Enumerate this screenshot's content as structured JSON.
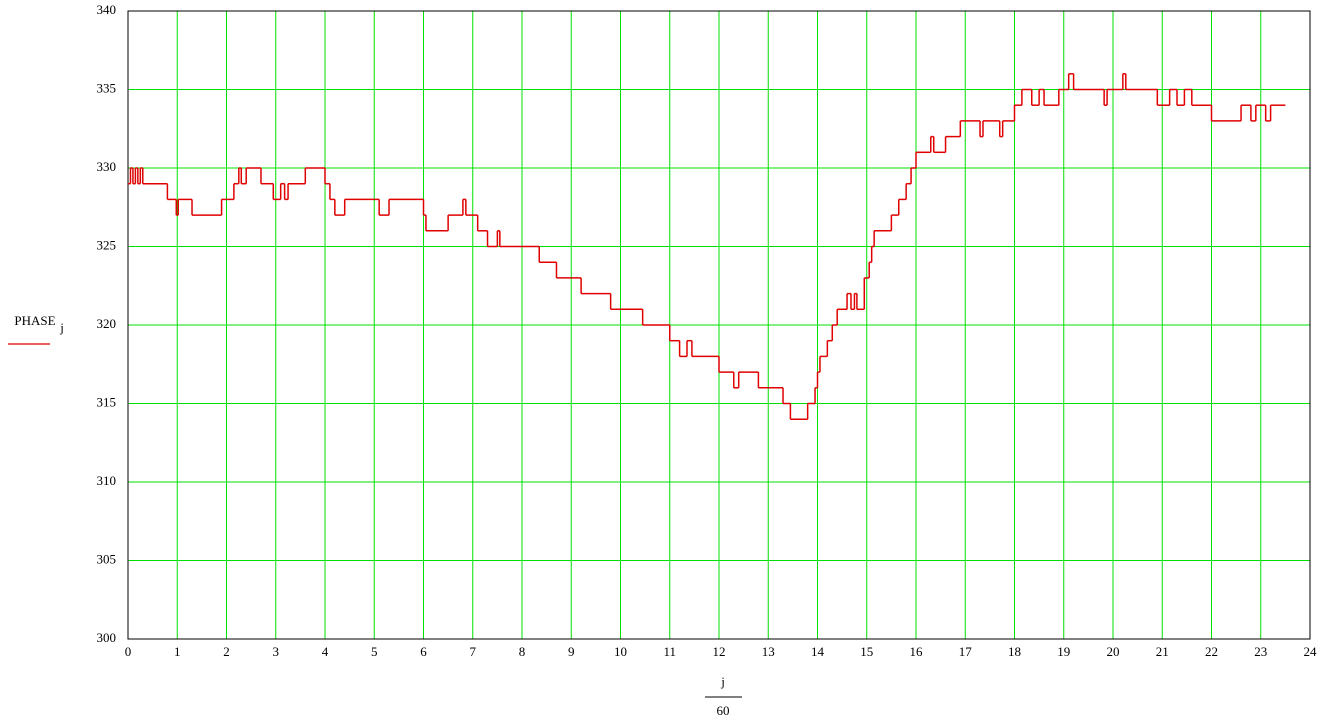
{
  "chart_data": {
    "type": "step",
    "y_label": "PHASE",
    "y_label_sub": "j",
    "x_label_num": "j",
    "x_label_den": "60",
    "series": [
      {
        "color": "#e00000",
        "x": [
          0,
          0.05,
          0.1,
          0.15,
          0.2,
          0.25,
          0.3,
          0.8,
          0.98,
          1.02,
          1.3,
          1.9,
          2.15,
          2.25,
          2.3,
          2.4,
          2.7,
          2.95,
          3.1,
          3.18,
          3.25,
          3.6,
          4.0,
          4.1,
          4.2,
          4.4,
          5.1,
          5.3,
          6.0,
          6.05,
          6.5,
          6.8,
          6.86,
          7.1,
          7.3,
          7.5,
          7.55,
          8.35,
          8.7,
          9.2,
          9.8,
          10.45,
          11.0,
          11.2,
          11.35,
          11.45,
          12.0,
          12.3,
          12.4,
          12.8,
          13.3,
          13.45,
          13.8,
          13.95,
          14.0,
          14.05,
          14.2,
          14.3,
          14.4,
          14.6,
          14.68,
          14.75,
          14.8,
          14.95,
          15.05,
          15.1,
          15.15,
          15.5,
          15.65,
          15.8,
          15.9,
          16.0,
          16.3,
          16.36,
          16.6,
          16.9,
          17.3,
          17.36,
          17.7,
          17.76,
          18.0,
          18.15,
          18.35,
          18.5,
          18.6,
          18.9,
          19.1,
          19.2,
          19.82,
          19.88,
          20.2,
          20.26,
          20.9,
          21.15,
          21.3,
          21.45,
          21.6,
          22.0,
          22.6,
          22.8,
          22.9,
          23.1,
          23.2,
          23.5
        ],
        "values": [
          329,
          330,
          329,
          330,
          329,
          330,
          329,
          328,
          327,
          328,
          327,
          328,
          329,
          330,
          329,
          330,
          329,
          328,
          329,
          328,
          329,
          330,
          329,
          328,
          327,
          328,
          327,
          328,
          327,
          326,
          327,
          328,
          327,
          326,
          325,
          326,
          325,
          324,
          323,
          322,
          321,
          320,
          319,
          318,
          319,
          318,
          317,
          316,
          317,
          316,
          315,
          314,
          315,
          316,
          317,
          318,
          319,
          320,
          321,
          322,
          321,
          322,
          321,
          323,
          324,
          325,
          326,
          327,
          328,
          329,
          330,
          331,
          332,
          331,
          332,
          333,
          332,
          333,
          332,
          333,
          334,
          335,
          334,
          335,
          334,
          335,
          336,
          335,
          334,
          335,
          336,
          335,
          334,
          335,
          334,
          335,
          334,
          333,
          334,
          333,
          334,
          333,
          334,
          334
        ]
      }
    ],
    "xlim": [
      0,
      24
    ],
    "xticks": [
      0,
      1,
      2,
      3,
      4,
      5,
      6,
      7,
      8,
      9,
      10,
      11,
      12,
      13,
      14,
      15,
      16,
      17,
      18,
      19,
      20,
      21,
      22,
      23,
      24
    ],
    "ylim": [
      300,
      340
    ],
    "yticks": [
      300,
      305,
      310,
      315,
      320,
      325,
      330,
      335,
      340
    ],
    "grid": true,
    "grid_color": "#00e000"
  }
}
